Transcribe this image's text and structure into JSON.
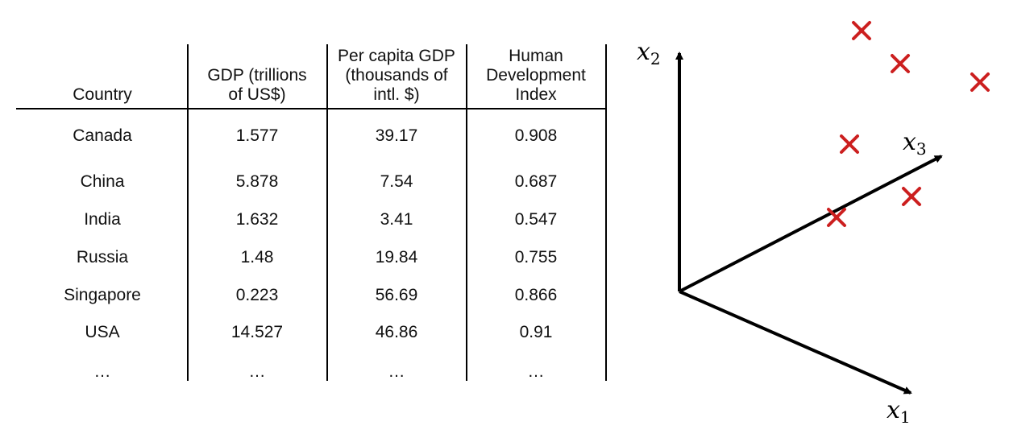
{
  "table": {
    "headers": [
      [
        "Country"
      ],
      [
        "GDP (trillions",
        "of US$)"
      ],
      [
        "Per capita GDP",
        "(thousands of",
        "intl. $)"
      ],
      [
        "Human",
        "Development",
        "Index"
      ]
    ],
    "rows": [
      [
        "Canada",
        "1.577",
        "39.17",
        "0.908"
      ],
      [
        "China",
        "5.878",
        "7.54",
        "0.687"
      ],
      [
        "India",
        "1.632",
        "3.41",
        "0.547"
      ],
      [
        "Russia",
        "1.48",
        "19.84",
        "0.755"
      ],
      [
        "Singapore",
        "0.223",
        "56.69",
        "0.866"
      ],
      [
        "USA",
        "14.527",
        "46.86",
        "0.91"
      ],
      [
        "…",
        "…",
        "…",
        "…"
      ]
    ]
  },
  "axes": {
    "x1_label": "x",
    "x1_sub": "1",
    "x2_label": "x",
    "x2_sub": "2",
    "x3_label": "x",
    "x3_sub": "3",
    "axis_color": "#000000",
    "marker_color": "#cc1f1f",
    "marker_count": 6
  }
}
